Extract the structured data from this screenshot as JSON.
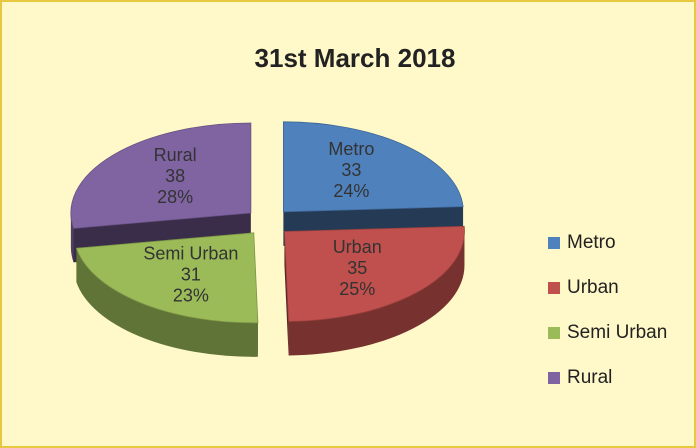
{
  "chart_data": {
    "type": "pie",
    "title": "31st March 2018",
    "categories": [
      "Metro",
      "Urban",
      "Semi Urban",
      "Rural"
    ],
    "values": [
      33,
      35,
      31,
      38
    ],
    "percent_labels": [
      "24%",
      "25%",
      "23%",
      "28%"
    ],
    "colors": [
      "#4f81bd",
      "#c0504d",
      "#9bbb59",
      "#8064a2"
    ],
    "legend": "right"
  }
}
